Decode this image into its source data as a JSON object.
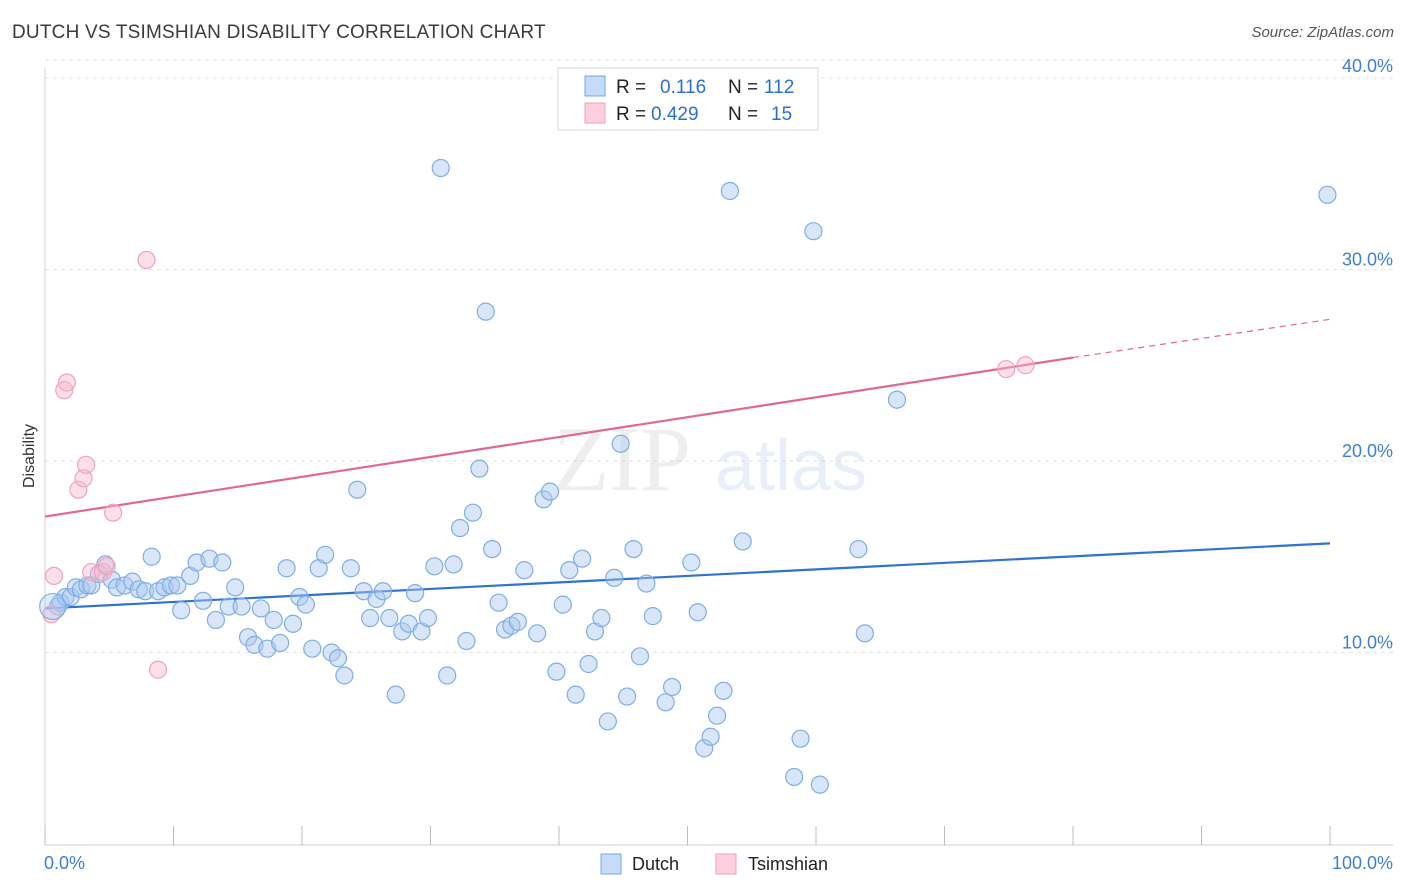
{
  "title": "DUTCH VS TSIMSHIAN DISABILITY CORRELATION CHART",
  "source": "Source: ZipAtlas.com",
  "colors": {
    "dutch": "#6fa8e8",
    "dutch_line": "#2f73cc",
    "tsimshian": "#f2a0b8",
    "tsimshian_line": "#e06890",
    "tick": "#3f7fd0"
  },
  "legend": {
    "rows": [
      {
        "r_label": "R =",
        "r_value": "0.116",
        "n_label": "N =",
        "n_value": "112"
      },
      {
        "r_label": "R =",
        "r_value": "0.429",
        "n_label": "N =",
        "n_value": "15"
      }
    ]
  },
  "bottom_legend": [
    "Dutch",
    "Tsimshian"
  ],
  "chart_data": {
    "type": "scatter",
    "title": "DUTCH VS TSIMSHIAN DISABILITY CORRELATION CHART",
    "xlabel": "",
    "ylabel": "Disability",
    "xlim": [
      0,
      100
    ],
    "ylim": [
      0,
      40
    ],
    "x_tick_labels": [
      "0.0%",
      "100.0%"
    ],
    "y_tick_labels": [
      "10.0%",
      "20.0%",
      "30.0%",
      "40.0%"
    ],
    "y_ticks": [
      10,
      20,
      30,
      40
    ],
    "grid": true,
    "legend_placement": "top-center",
    "series": [
      {
        "name": "Dutch",
        "trend": {
          "x": [
            0,
            100
          ],
          "y": [
            12.3,
            15.7
          ]
        },
        "points": [
          [
            1.0,
            12.4
          ],
          [
            1.2,
            12.6
          ],
          [
            1.6,
            12.9
          ],
          [
            2.0,
            12.9
          ],
          [
            2.4,
            13.4
          ],
          [
            2.8,
            13.3
          ],
          [
            3.3,
            13.5
          ],
          [
            3.6,
            13.5
          ],
          [
            4.2,
            14.1
          ],
          [
            4.7,
            14.6
          ],
          [
            5.2,
            13.8
          ],
          [
            5.6,
            13.4
          ],
          [
            6.2,
            13.5
          ],
          [
            6.8,
            13.7
          ],
          [
            7.3,
            13.3
          ],
          [
            7.8,
            13.2
          ],
          [
            8.3,
            15.0
          ],
          [
            8.8,
            13.2
          ],
          [
            9.3,
            13.4
          ],
          [
            9.8,
            13.5
          ],
          [
            10.3,
            13.5
          ],
          [
            10.6,
            12.2
          ],
          [
            11.3,
            14.0
          ],
          [
            11.8,
            14.7
          ],
          [
            12.3,
            12.7
          ],
          [
            12.8,
            14.9
          ],
          [
            13.3,
            11.7
          ],
          [
            13.8,
            14.7
          ],
          [
            14.3,
            12.4
          ],
          [
            14.8,
            13.4
          ],
          [
            15.3,
            12.4
          ],
          [
            15.8,
            10.8
          ],
          [
            16.3,
            10.4
          ],
          [
            16.8,
            12.3
          ],
          [
            17.3,
            10.2
          ],
          [
            17.8,
            11.7
          ],
          [
            18.3,
            10.5
          ],
          [
            18.8,
            14.4
          ],
          [
            19.3,
            11.5
          ],
          [
            19.8,
            12.9
          ],
          [
            20.3,
            12.5
          ],
          [
            20.8,
            10.2
          ],
          [
            21.3,
            14.4
          ],
          [
            21.8,
            15.1
          ],
          [
            22.3,
            10.0
          ],
          [
            22.8,
            9.7
          ],
          [
            23.3,
            8.8
          ],
          [
            23.8,
            14.4
          ],
          [
            24.3,
            18.5
          ],
          [
            24.8,
            13.2
          ],
          [
            25.3,
            11.8
          ],
          [
            25.8,
            12.8
          ],
          [
            26.3,
            13.2
          ],
          [
            26.8,
            11.8
          ],
          [
            27.3,
            7.8
          ],
          [
            27.8,
            11.1
          ],
          [
            28.3,
            11.5
          ],
          [
            28.8,
            13.1
          ],
          [
            29.3,
            11.1
          ],
          [
            29.8,
            11.8
          ],
          [
            30.3,
            14.5
          ],
          [
            30.8,
            35.3
          ],
          [
            31.3,
            8.8
          ],
          [
            31.8,
            14.6
          ],
          [
            32.3,
            16.5
          ],
          [
            32.8,
            10.6
          ],
          [
            33.3,
            17.3
          ],
          [
            33.8,
            19.6
          ],
          [
            34.3,
            27.8
          ],
          [
            34.8,
            15.4
          ],
          [
            35.3,
            12.6
          ],
          [
            35.8,
            11.2
          ],
          [
            36.3,
            11.4
          ],
          [
            36.8,
            11.6
          ],
          [
            37.3,
            14.3
          ],
          [
            38.3,
            11.0
          ],
          [
            38.8,
            18.0
          ],
          [
            39.3,
            18.4
          ],
          [
            39.8,
            9.0
          ],
          [
            40.3,
            12.5
          ],
          [
            40.8,
            14.3
          ],
          [
            41.3,
            7.8
          ],
          [
            41.8,
            14.9
          ],
          [
            42.3,
            9.4
          ],
          [
            42.8,
            11.1
          ],
          [
            43.3,
            11.8
          ],
          [
            43.8,
            6.4
          ],
          [
            44.3,
            13.9
          ],
          [
            44.8,
            20.9
          ],
          [
            45.3,
            7.7
          ],
          [
            45.8,
            15.4
          ],
          [
            46.3,
            9.8
          ],
          [
            46.8,
            13.6
          ],
          [
            47.3,
            11.9
          ],
          [
            48.3,
            7.4
          ],
          [
            48.8,
            8.2
          ],
          [
            50.3,
            14.7
          ],
          [
            50.8,
            12.1
          ],
          [
            51.3,
            5.0
          ],
          [
            51.8,
            5.6
          ],
          [
            52.3,
            6.7
          ],
          [
            52.8,
            8.0
          ],
          [
            53.3,
            34.1
          ],
          [
            54.3,
            15.8
          ],
          [
            58.3,
            3.5
          ],
          [
            58.8,
            5.5
          ],
          [
            59.8,
            32.0
          ],
          [
            60.3,
            3.1
          ],
          [
            63.3,
            15.4
          ],
          [
            63.8,
            11.0
          ],
          [
            66.3,
            23.2
          ],
          [
            99.8,
            33.9
          ]
        ]
      },
      {
        "name": "Tsimshian",
        "trend": {
          "x": [
            0,
            80
          ],
          "y": [
            17.1,
            25.4
          ]
        },
        "trend_dashed": {
          "x": [
            80,
            100
          ],
          "y": [
            25.4,
            27.4
          ]
        },
        "points": [
          [
            0.5,
            12.0
          ],
          [
            0.7,
            14.0
          ],
          [
            1.5,
            23.7
          ],
          [
            1.7,
            24.1
          ],
          [
            2.6,
            18.5
          ],
          [
            3.0,
            19.1
          ],
          [
            3.2,
            19.8
          ],
          [
            3.6,
            14.2
          ],
          [
            4.5,
            14.2
          ],
          [
            4.8,
            14.5
          ],
          [
            5.3,
            17.3
          ],
          [
            7.9,
            30.5
          ],
          [
            8.8,
            9.1
          ],
          [
            74.8,
            24.8
          ],
          [
            76.3,
            25.0
          ]
        ]
      }
    ]
  }
}
